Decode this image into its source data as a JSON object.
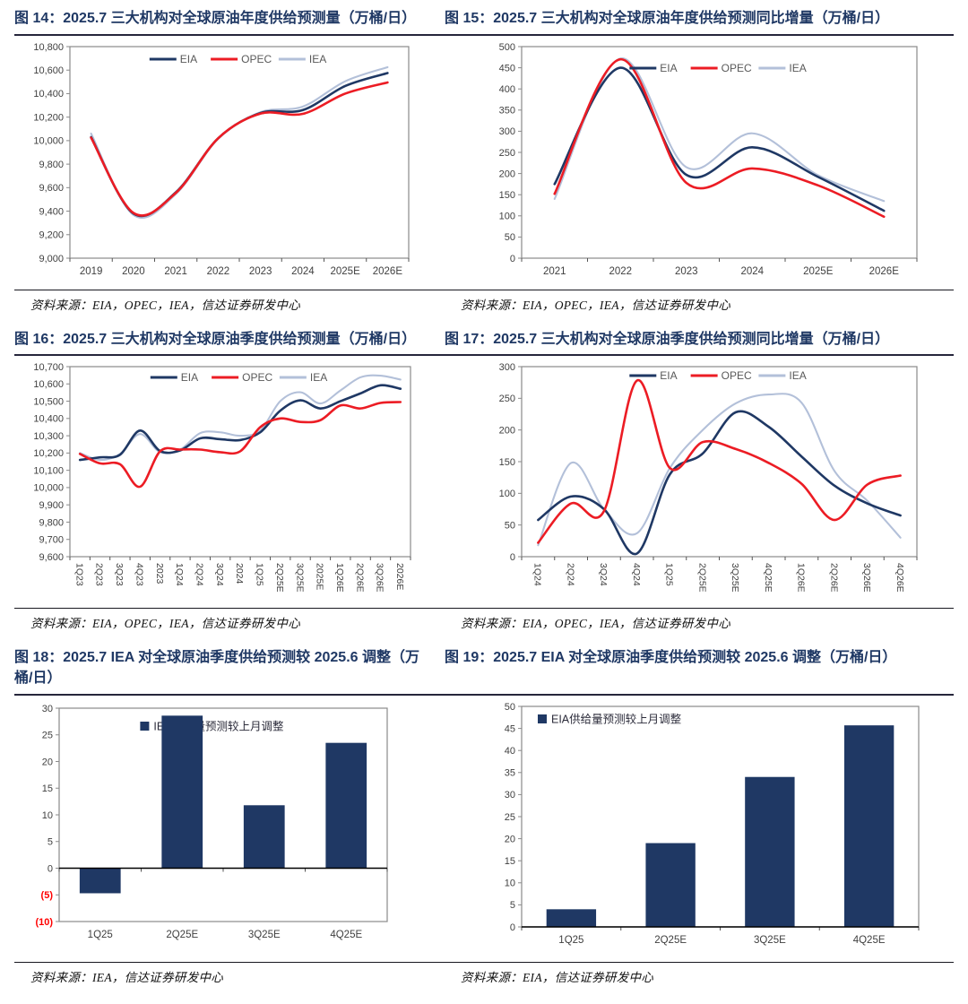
{
  "colors": {
    "title_navy": "#1F3864",
    "eia_navy": "#1F3864",
    "opec_red": "#EC1C24",
    "iea_light": "#B3C0D9",
    "bar_navy": "#1F3864",
    "negative_tick_red": "#FF0000",
    "axis_text": "#404040"
  },
  "figures": [
    {
      "id": "fig-14",
      "title": "图 14：2025.7 三大机构对全球原油年度供给预测量（万桶/日）",
      "source": "资料来源：EIA，OPEC，IEA，信达证券研发中心"
    },
    {
      "id": "fig-15",
      "title": "图 15：2025.7 三大机构对全球原油年度供给预测同比增量（万桶/日）",
      "source": "资料来源：EIA，OPEC，IEA，信达证券研发中心"
    },
    {
      "id": "fig-16",
      "title": "图 16：2025.7 三大机构对全球原油季度供给预测量（万桶/日）",
      "source": "资料来源：EIA，OPEC，IEA，信达证券研发中心"
    },
    {
      "id": "fig-17",
      "title": "图 17：2025.7 三大机构对全球原油季度供给预测同比增量（万桶/日）",
      "source": "资料来源：EIA，OPEC，IEA，信达证券研发中心"
    },
    {
      "id": "fig-18",
      "title": "图 18：2025.7 IEA 对全球原油季度供给预测较 2025.6 调整（万桶/日）",
      "source": "资料来源：IEA，信达证券研发中心"
    },
    {
      "id": "fig-19",
      "title": "图 19：2025.7 EIA 对全球原油季度供给预测较 2025.6 调整（万桶/日）",
      "source": "资料来源：EIA，信达证券研发中心"
    }
  ],
  "chart_data": [
    {
      "figure": "图 14",
      "type": "line",
      "title": "2025.7 三大机构对全球原油年度供给预测量（万桶/日）",
      "categories": [
        "2019",
        "2020",
        "2021",
        "2022",
        "2023",
        "2024",
        "2025E",
        "2026E"
      ],
      "series": [
        {
          "name": "EIA",
          "color": "#1F3864",
          "values": [
            10030,
            9380,
            9560,
            10020,
            10235,
            10260,
            10465,
            10575
          ]
        },
        {
          "name": "OPEC",
          "color": "#EC1C24",
          "values": [
            10025,
            9385,
            9555,
            10020,
            10230,
            10228,
            10400,
            10495
          ]
        },
        {
          "name": "IEA",
          "color": "#B3C0D9",
          "values": [
            10060,
            9368,
            9545,
            10015,
            10242,
            10290,
            10505,
            10625
          ]
        }
      ],
      "ylim": [
        9000,
        10800
      ],
      "ytick": 200,
      "y_format": "comma",
      "rotate_x": false,
      "legend_position": "top-center",
      "grid": false
    },
    {
      "figure": "图 15",
      "type": "line",
      "title": "2025.7 三大机构对全球原油年度供给预测同比增量（万桶/日）",
      "categories": [
        "2021",
        "2022",
        "2023",
        "2024",
        "2025E",
        "2026E"
      ],
      "series": [
        {
          "name": "EIA",
          "color": "#1F3864",
          "values": [
            175,
            450,
            197,
            262,
            192,
            112
          ]
        },
        {
          "name": "OPEC",
          "color": "#EC1C24",
          "values": [
            152,
            470,
            178,
            212,
            172,
            98
          ]
        },
        {
          "name": "IEA",
          "color": "#B3C0D9",
          "values": [
            140,
            472,
            215,
            295,
            196,
            135
          ]
        }
      ],
      "ylim": [
        0,
        500
      ],
      "ytick": 50,
      "y_format": "plain",
      "rotate_x": false,
      "legend_position": "top-center",
      "grid": false
    },
    {
      "figure": "图 16",
      "type": "line",
      "title": "2025.7 三大机构对全球原油季度供给预测量（万桶/日）",
      "categories": [
        "1Q23",
        "2Q23",
        "3Q23",
        "4Q23",
        "2023",
        "1Q24",
        "2Q24",
        "3Q24",
        "2024",
        "1Q25",
        "2Q25E",
        "3Q25E",
        "2025E",
        "1Q26E",
        "2Q26E",
        "3Q26E",
        "2026E"
      ],
      "series": [
        {
          "name": "EIA",
          "color": "#1F3864",
          "values": [
            10160,
            10175,
            10190,
            10330,
            10212,
            10215,
            10285,
            10280,
            10275,
            10320,
            10445,
            10505,
            10458,
            10500,
            10545,
            10592,
            10572
          ]
        },
        {
          "name": "OPEC",
          "color": "#EC1C24",
          "values": [
            10195,
            10140,
            10135,
            10005,
            10210,
            10220,
            10220,
            10205,
            10210,
            10350,
            10400,
            10380,
            10390,
            10475,
            10458,
            10490,
            10495
          ]
        },
        {
          "name": "IEA",
          "color": "#B3C0D9",
          "values": [
            10200,
            10160,
            10195,
            10310,
            10205,
            10220,
            10315,
            10320,
            10300,
            10330,
            10500,
            10552,
            10487,
            10562,
            10638,
            10648,
            10625
          ]
        }
      ],
      "ylim": [
        9600,
        10700
      ],
      "ytick": 100,
      "y_format": "comma",
      "rotate_x": true,
      "legend_position": "top-center",
      "grid": false
    },
    {
      "figure": "图 17",
      "type": "line",
      "title": "2025.7 三大机构对全球原油季度供给预测同比增量（万桶/日）",
      "categories": [
        "1Q24",
        "2Q24",
        "3Q24",
        "4Q24",
        "1Q25",
        "2Q25E",
        "3Q25E",
        "4Q25E",
        "1Q26E",
        "2Q26E",
        "3Q26E",
        "4Q26E"
      ],
      "series": [
        {
          "name": "EIA",
          "color": "#1F3864",
          "values": [
            58,
            95,
            75,
            5,
            130,
            163,
            228,
            205,
            158,
            112,
            84,
            65
          ]
        },
        {
          "name": "OPEC",
          "color": "#EC1C24",
          "values": [
            22,
            84,
            72,
            278,
            140,
            181,
            170,
            148,
            115,
            58,
            114,
            128
          ]
        },
        {
          "name": "IEA",
          "color": "#B3C0D9",
          "values": [
            18,
            148,
            75,
            37,
            140,
            200,
            242,
            256,
            243,
            135,
            88,
            30
          ]
        }
      ],
      "ylim": [
        0,
        300
      ],
      "ytick": 50,
      "y_format": "plain",
      "rotate_x": true,
      "legend_position": "top-center",
      "grid": false
    },
    {
      "figure": "图 18",
      "type": "bar",
      "title": "2025.7 IEA 对全球原油季度供给预测较 2025.6 调整（万桶/日）",
      "legend": "IEA供给量预测较上月调整",
      "categories": [
        "1Q25",
        "2Q25E",
        "3Q25E",
        "4Q25E"
      ],
      "values": [
        -4.7,
        28.6,
        11.8,
        23.5
      ],
      "bar_color": "#1F3864",
      "ylim": [
        -10,
        30
      ],
      "ytick": 5,
      "y_format": "paren",
      "rotate_x": false,
      "legend_position": "top-center",
      "grid": false
    },
    {
      "figure": "图 19",
      "type": "bar",
      "title": "2025.7 EIA 对全球原油季度供给预测较 2025.6 调整（万桶/日）",
      "legend": "EIA供给量预测较上月调整",
      "categories": [
        "1Q25",
        "2Q25E",
        "3Q25E",
        "4Q25E"
      ],
      "values": [
        4,
        19,
        34,
        45.7
      ],
      "bar_color": "#1F3864",
      "ylim": [
        0,
        50
      ],
      "ytick": 5,
      "y_format": "plain",
      "rotate_x": false,
      "legend_position": "top-left",
      "grid": false
    }
  ]
}
